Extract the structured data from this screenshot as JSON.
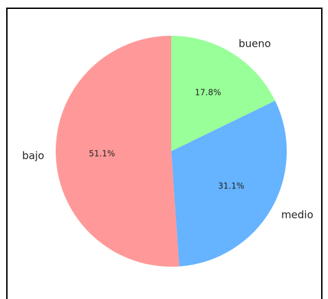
{
  "chart_data": {
    "type": "pie",
    "title": "",
    "slices": [
      {
        "label": "bueno",
        "value": 17.8,
        "pct_label": "17.8%",
        "color": "#99ff99"
      },
      {
        "label": "medio",
        "value": 31.1,
        "pct_label": "31.1%",
        "color": "#66b3ff"
      },
      {
        "label": "bajo",
        "value": 51.1,
        "pct_label": "51.1%",
        "color": "#ff9999"
      }
    ],
    "start_angle_deg": 90,
    "direction": "clockwise",
    "legend": "none",
    "frame_color": "#000000"
  }
}
